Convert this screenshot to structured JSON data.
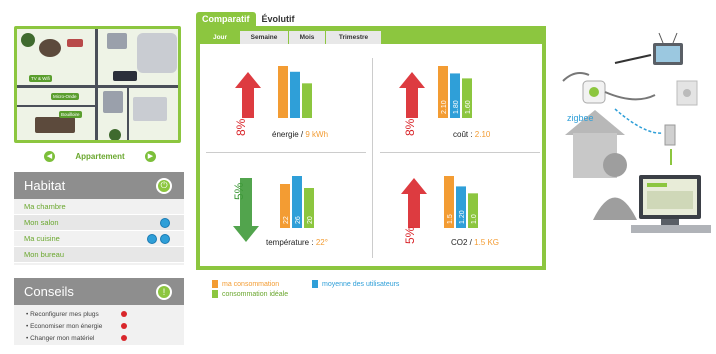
{
  "floorplan": {
    "labels": [
      "TV & Wifi",
      "Micro-Onde",
      "Bouilloire"
    ],
    "caption": "Appartement"
  },
  "habitat": {
    "title": "Habitat",
    "rooms": [
      {
        "label": "Ma chambre",
        "plugs": 0
      },
      {
        "label": "Mon salon",
        "plugs": 1
      },
      {
        "label": "Ma cuisine",
        "plugs": 2
      },
      {
        "label": "Mon bureau",
        "plugs": 0
      }
    ]
  },
  "conseils": {
    "title": "Conseils",
    "items": [
      "Reconfigurer mes plugs",
      "Economiser mon énergie",
      "Changer mon matériel"
    ]
  },
  "tabs": [
    "Comparatif",
    "Évolutif"
  ],
  "subtabs": [
    "Jour",
    "Semaine",
    "Mois",
    "Trimestre"
  ],
  "chart_data": [
    {
      "type": "bar",
      "name": "energie",
      "label": "énergie",
      "value_text": "9 kWh",
      "change": "8%",
      "direction": "up",
      "categories": [
        "ma consommation",
        "moyenne des utilisateurs",
        "consommation idéale"
      ],
      "values": [
        9,
        8,
        6
      ]
    },
    {
      "type": "bar",
      "name": "cout",
      "label": "coût",
      "value_text": "2.10",
      "change": "8%",
      "direction": "up",
      "categories": [
        "ma consommation",
        "moyenne des utilisateurs",
        "consommation idéale"
      ],
      "values": [
        2.1,
        1.8,
        1.6
      ],
      "bar_labels": [
        "2.10",
        "1.80",
        "1.60"
      ]
    },
    {
      "type": "bar",
      "name": "temperature",
      "label": "température",
      "value_text": "22°",
      "change": "5%",
      "direction": "down",
      "categories": [
        "ma consommation",
        "moyenne des utilisateurs",
        "consommation idéale"
      ],
      "values": [
        22,
        26,
        20
      ],
      "bar_labels": [
        "22",
        "26",
        "20"
      ]
    },
    {
      "type": "bar",
      "name": "co2",
      "label": "CO2",
      "value_text": "1.5 KG",
      "change": "5%",
      "direction": "up",
      "categories": [
        "ma consommation",
        "moyenne des utilisateurs",
        "consommation idéale"
      ],
      "values": [
        1.5,
        1.2,
        1.0
      ],
      "bar_labels": [
        "1.5",
        "1.20",
        "1.0"
      ]
    }
  ],
  "legend": [
    {
      "label": "ma consommation",
      "color": "#f39c33"
    },
    {
      "label": "moyenne des utilisateurs",
      "color": "#2f9fd8"
    },
    {
      "label": "consommation idéale",
      "color": "#8cc63f"
    }
  ],
  "illustration": {
    "zigbee_label": "zigbee"
  },
  "colors": {
    "accent": "#8cc63f",
    "orange": "#f39c33",
    "blue": "#2f9fd8",
    "green": "#8cc63f",
    "up": "#d9262b",
    "down": "#3f9a3a"
  }
}
